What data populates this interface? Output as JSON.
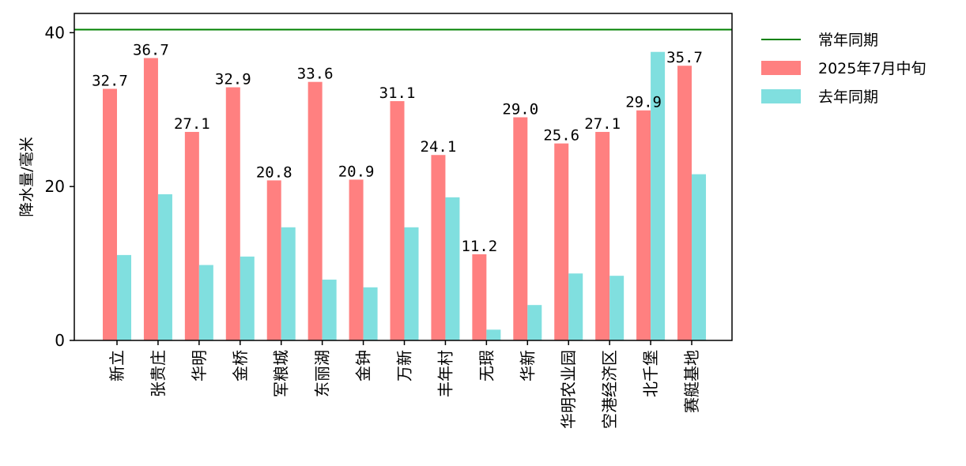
{
  "chart_data": {
    "type": "bar",
    "title": "",
    "xlabel": "",
    "ylabel": "降水量/毫米",
    "ylim": [
      0,
      42.5
    ],
    "yticks": [
      0,
      20,
      40
    ],
    "grid": false,
    "legend_position": "outside-top-right",
    "categories": [
      "新立",
      "张贵庄",
      "华明",
      "金桥",
      "军粮城",
      "东丽湖",
      "金钟",
      "万新",
      "丰年村",
      "无瑕",
      "华新",
      "华明农业园",
      "空港经济区",
      "北千堡",
      "赛艇基地"
    ],
    "series": [
      {
        "name": "2025年7月中旬",
        "color": "#ff8080",
        "values": [
          32.7,
          36.7,
          27.1,
          32.9,
          20.8,
          33.6,
          20.9,
          31.1,
          24.1,
          11.2,
          29.0,
          25.6,
          27.1,
          29.9,
          35.7
        ],
        "labels": [
          "32.7",
          "36.7",
          "27.1",
          "32.9",
          "20.8",
          "33.6",
          "20.9",
          "31.1",
          "24.1",
          "11.2",
          "29.0",
          "25.6",
          "27.1",
          "29.9",
          "35.7"
        ]
      },
      {
        "name": "去年同期",
        "color": "#80dfdf",
        "values": [
          11.1,
          19.0,
          9.8,
          10.9,
          14.7,
          7.9,
          6.9,
          14.7,
          18.6,
          1.4,
          4.6,
          8.7,
          8.4,
          37.5,
          21.6
        ]
      }
    ],
    "reference_lines": [
      {
        "name": "常年同期",
        "value": 40.4,
        "color": "#008000"
      }
    ]
  }
}
